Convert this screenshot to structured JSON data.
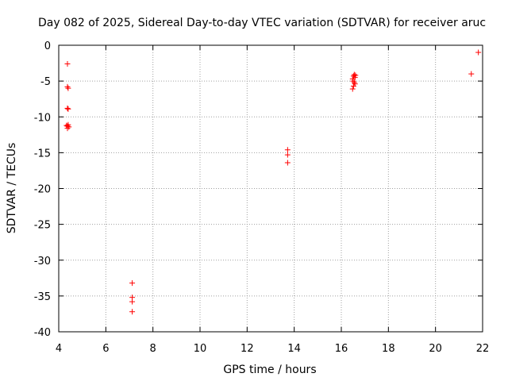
{
  "chart_data": {
    "type": "scatter",
    "title": "Day 082 of 2025, Sidereal Day-to-day VTEC variation (SDTVAR) for receiver aruc",
    "xlabel": "GPS time / hours",
    "ylabel": "SDTVAR / TECUs",
    "xlim": [
      4,
      22
    ],
    "ylim": [
      -40,
      0
    ],
    "xticks": [
      4,
      6,
      8,
      10,
      12,
      14,
      16,
      18,
      20,
      22
    ],
    "yticks": [
      0,
      -5,
      -10,
      -15,
      -20,
      -25,
      -30,
      -35,
      -40
    ],
    "grid": true,
    "marker": "+",
    "colors": {
      "marker": "#ff0000",
      "grid": "#a0a0a0",
      "axis": "#000000"
    },
    "series": [
      {
        "name": "SDTVAR",
        "points": [
          [
            4.37,
            -2.6
          ],
          [
            4.37,
            -5.8
          ],
          [
            4.4,
            -6.0
          ],
          [
            4.37,
            -8.8
          ],
          [
            4.4,
            -8.9
          ],
          [
            4.33,
            -11.2
          ],
          [
            4.37,
            -11.3
          ],
          [
            4.4,
            -11.1
          ],
          [
            4.43,
            -11.4
          ],
          [
            4.37,
            -11.6
          ],
          [
            7.12,
            -33.2
          ],
          [
            7.12,
            -35.2
          ],
          [
            7.12,
            -35.8
          ],
          [
            7.12,
            -37.2
          ],
          [
            13.72,
            -14.6
          ],
          [
            13.72,
            -15.3
          ],
          [
            13.72,
            -16.4
          ],
          [
            16.48,
            -4.7
          ],
          [
            16.52,
            -4.3
          ],
          [
            16.55,
            -4.1
          ],
          [
            16.58,
            -4.5
          ],
          [
            16.6,
            -4.2
          ],
          [
            16.5,
            -5.0
          ],
          [
            16.55,
            -5.2
          ],
          [
            16.58,
            -5.4
          ],
          [
            16.52,
            -5.7
          ],
          [
            16.48,
            -6.1
          ],
          [
            21.52,
            -4.0
          ],
          [
            21.82,
            -1.0
          ]
        ]
      }
    ]
  }
}
